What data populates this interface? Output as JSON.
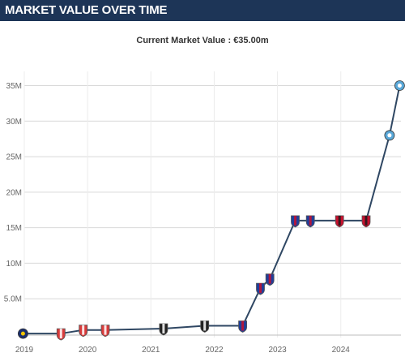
{
  "header": {
    "title": "MARKET VALUE OVER TIME"
  },
  "chart_data": {
    "type": "line",
    "title": "MARKET VALUE OVER TIME",
    "subtitle": "Current Market Value : €35.00m",
    "x_unit": "year",
    "y_unit": "million EUR",
    "xlim": [
      2019,
      2024.95
    ],
    "ylim": [
      0,
      37
    ],
    "x_ticks": [
      2019,
      2020,
      2021,
      2022,
      2023,
      2024
    ],
    "x_tick_labels": [
      "2019",
      "2020",
      "2021",
      "2022",
      "2023",
      "2024"
    ],
    "y_ticks": [
      5,
      10,
      15,
      20,
      25,
      30,
      35
    ],
    "y_tick_labels": [
      "5.0M",
      "10M",
      "15M",
      "20M",
      "25M",
      "30M",
      "35M"
    ],
    "grid": true,
    "series": [
      {
        "color": "#2f4763",
        "x": [
          2018.98,
          2019.58,
          2019.93,
          2020.28,
          2021.2,
          2021.85,
          2022.45,
          2022.73,
          2022.88,
          2023.28,
          2023.52,
          2023.98,
          2024.4,
          2024.77,
          2024.93
        ],
        "y": [
          0.1,
          0.1,
          0.6,
          0.6,
          0.8,
          1.2,
          1.2,
          6.5,
          7.8,
          16,
          16,
          16,
          16,
          28,
          35
        ],
        "markers": [
          {
            "club": "blue-yellow-crest"
          },
          {
            "club": "red-white-stripes-crest"
          },
          {
            "club": "red-white-stripes-crest"
          },
          {
            "club": "red-white-stripes-crest"
          },
          {
            "club": "black-white-stripes-crest"
          },
          {
            "club": "black-white-stripes-crest"
          },
          {
            "club": "blue-red-crest"
          },
          {
            "club": "blue-red-crest"
          },
          {
            "club": "blue-red-crest"
          },
          {
            "club": "blue-red-crest"
          },
          {
            "club": "blue-red-crest"
          },
          {
            "club": "red-black-crest"
          },
          {
            "club": "red-black-crest"
          },
          {
            "club": "light-blue-crest"
          },
          {
            "club": "light-blue-crest"
          }
        ]
      }
    ]
  },
  "colors": {
    "header_bg": "#1d3557",
    "line": "#2f4763",
    "grid": "#d9d9d9"
  }
}
